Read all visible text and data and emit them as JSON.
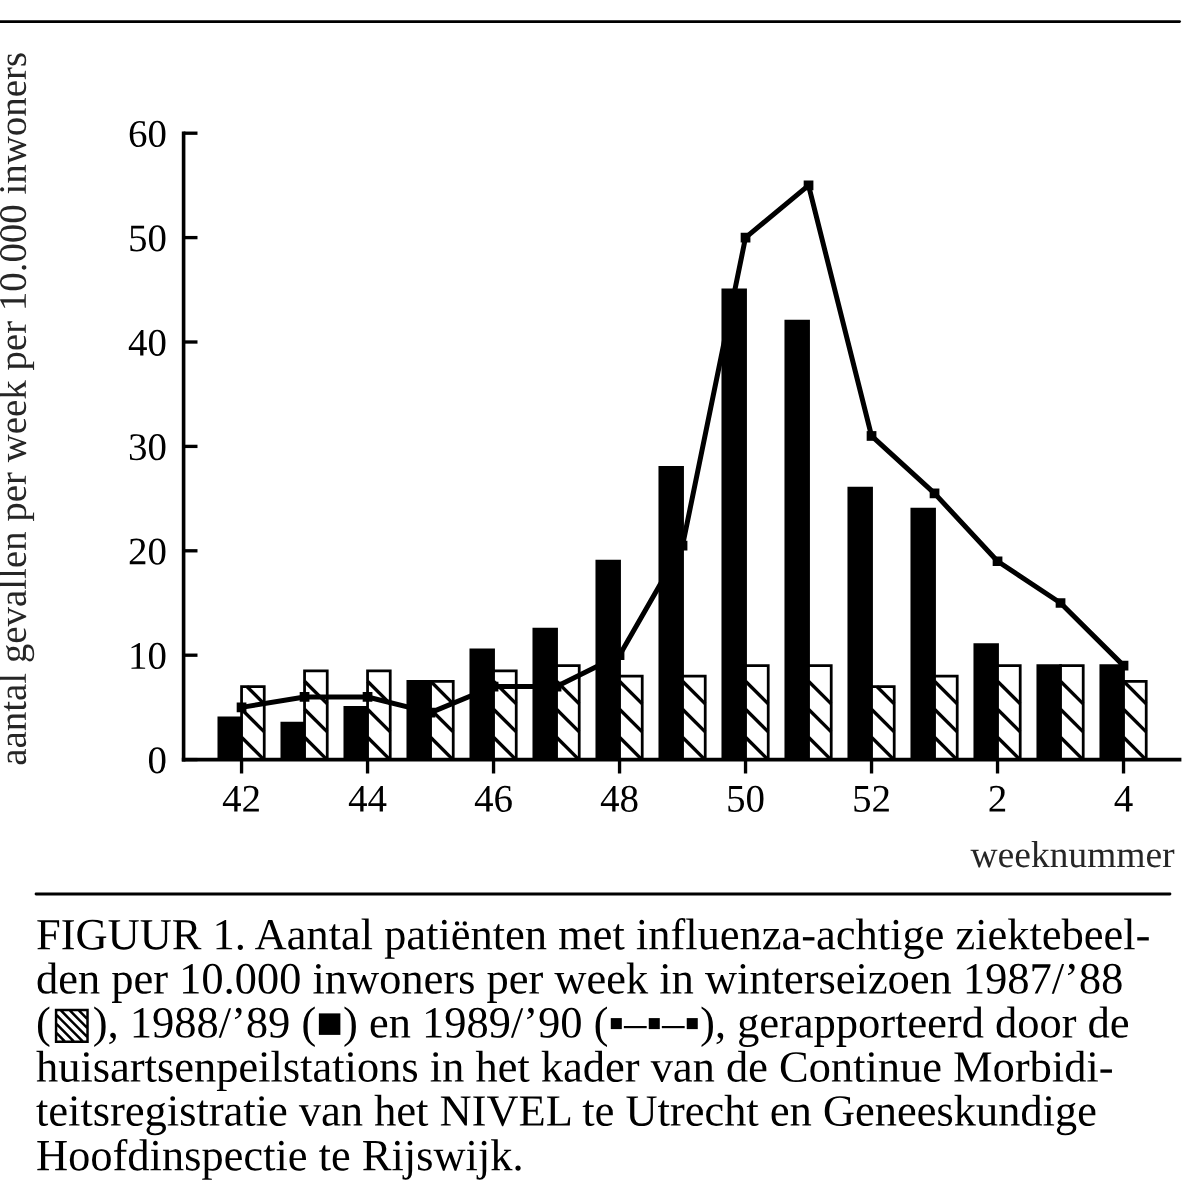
{
  "chart_data": {
    "type": "bar",
    "xlabel": "weeknummer",
    "ylabel": "aantal gevallen per week per 10.000 inwoners",
    "categories": [
      "42",
      null,
      "44",
      null,
      "46",
      null,
      "48",
      null,
      "50",
      null,
      "52",
      null,
      "2",
      null,
      "4"
    ],
    "series": [
      {
        "color": "#000000",
        "values": [
          4,
          3.5,
          5,
          7.5,
          10.5,
          12.5,
          19,
          28,
          45,
          42,
          26,
          24,
          11,
          9,
          9
        ]
      },
      {
        "color": "#ffffff",
        "values": [
          7,
          8.5,
          8.5,
          7.5,
          8.5,
          9,
          8,
          8,
          9,
          9,
          7,
          8,
          9,
          9,
          7.5
        ]
      },
      {
        "type": "line",
        "color": "#000000",
        "marker": "square",
        "line_style": "solid",
        "values": [
          5,
          6,
          6,
          4.5,
          7,
          7,
          10,
          20.5,
          50,
          55,
          31,
          25.5,
          19,
          15,
          9
        ]
      }
    ],
    "ylim": [
      0,
      60
    ],
    "yticks": [
      0,
      10,
      20,
      30,
      40,
      50,
      60
    ],
    "annotations": [
      "FIGUUR 1. Aantal patiënten met influenza-achtige ziektebeel-\nden per 10.000 inwoners per week in winterseizoen 1987/’88\n(▧), 1988/’89 (■) en 1989/’90 (▪–▪–▪), gerapporteerd door de\nhuisartsenpeilstations in het kader van de Continue Morbidi-\nteitsregistratie van het NIVEL te Utrecht en Geneeskundige\nHoofdinspectie te Rijswijk."
    ]
  }
}
